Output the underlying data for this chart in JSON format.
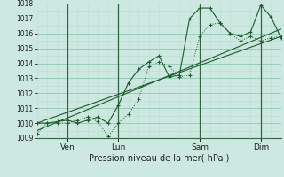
{
  "xlabel": "Pression niveau de la mer( hPa )",
  "ylim": [
    1009,
    1018
  ],
  "xlim": [
    0,
    9.6
  ],
  "background_color": "#cce8e0",
  "grid_major_color": "#99ccbb",
  "grid_minor_color": "#bbddd5",
  "line_color": "#1a5c2a",
  "vline_color": "#336644",
  "xtick_labels": [
    "Ven",
    "Lun",
    "Sam",
    "Dim"
  ],
  "xtick_positions": [
    1.2,
    3.2,
    6.4,
    8.8
  ],
  "vline_positions": [
    1.2,
    3.2,
    6.4,
    8.8
  ],
  "yticks": [
    1009,
    1010,
    1011,
    1012,
    1013,
    1014,
    1015,
    1016,
    1017,
    1018
  ],
  "line1_x": [
    0.0,
    0.4,
    0.8,
    1.2,
    1.6,
    2.0,
    2.4,
    2.8,
    3.2,
    3.6,
    4.0,
    4.4,
    4.8,
    5.2,
    5.6,
    6.0,
    6.4,
    6.8,
    7.2,
    7.6,
    8.0,
    8.4,
    8.8,
    9.2,
    9.6
  ],
  "line1_y": [
    1009.3,
    1010.0,
    1010.0,
    1010.0,
    1010.2,
    1010.4,
    1010.1,
    1009.1,
    1010.0,
    1010.6,
    1011.6,
    1013.8,
    1014.1,
    1013.8,
    1013.1,
    1013.2,
    1015.8,
    1016.6,
    1016.7,
    1016.0,
    1015.5,
    1015.8,
    1015.5,
    1015.7,
    1015.8
  ],
  "line2_x": [
    0.0,
    0.4,
    0.8,
    1.2,
    1.6,
    2.0,
    2.4,
    2.8,
    3.2,
    3.6,
    4.0,
    4.4,
    4.8,
    5.2,
    5.6,
    6.0,
    6.4,
    6.8,
    7.2,
    7.6,
    8.0,
    8.4,
    8.8,
    9.2,
    9.6
  ],
  "line2_y": [
    1010.0,
    1010.0,
    1010.1,
    1010.2,
    1010.0,
    1010.2,
    1010.4,
    1010.0,
    1011.2,
    1012.7,
    1013.6,
    1014.1,
    1014.5,
    1013.1,
    1013.2,
    1017.0,
    1017.7,
    1017.7,
    1016.7,
    1016.0,
    1015.8,
    1016.1,
    1017.9,
    1017.1,
    1015.7
  ],
  "line3_x": [
    0.0,
    9.6
  ],
  "line3_y": [
    1010.0,
    1015.8
  ],
  "line4_x": [
    0.0,
    9.6
  ],
  "line4_y": [
    1009.5,
    1016.3
  ]
}
